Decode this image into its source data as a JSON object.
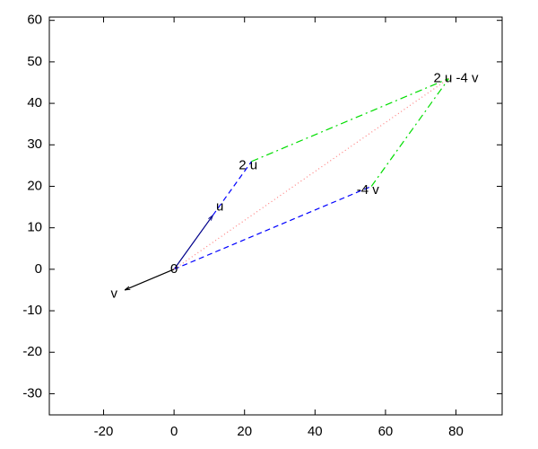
{
  "chart_data": {
    "type": "vector",
    "xlim": [
      -35.4,
      93.1
    ],
    "ylim": [
      -35.1,
      60.8
    ],
    "xticks": [
      -20,
      0,
      20,
      40,
      60,
      80
    ],
    "yticks": [
      -30,
      -20,
      -10,
      0,
      10,
      20,
      30,
      40,
      50,
      60
    ],
    "series": [
      {
        "color": "#00008b",
        "style": "solid",
        "arrow": true,
        "x": [
          0,
          11
        ],
        "y": [
          0,
          13
        ]
      },
      {
        "color": "#000000",
        "style": "solid",
        "arrow": true,
        "x": [
          0,
          -14
        ],
        "y": [
          0,
          -5
        ]
      },
      {
        "color": "#0000ff",
        "style": "dashed",
        "x": [
          11,
          22
        ],
        "y": [
          13,
          26
        ]
      },
      {
        "color": "#0000ff",
        "style": "dashed",
        "x": [
          0,
          56
        ],
        "y": [
          0,
          20
        ]
      },
      {
        "color": "#00dd00",
        "style": "dashdot",
        "x": [
          22,
          78
        ],
        "y": [
          26,
          46
        ]
      },
      {
        "color": "#00dd00",
        "style": "dashdot",
        "x": [
          56,
          78
        ],
        "y": [
          20,
          46
        ]
      },
      {
        "color": "#ff8080",
        "style": "dotted",
        "x": [
          0,
          78
        ],
        "y": [
          0,
          46
        ]
      }
    ],
    "annotations": [
      {
        "text": "0",
        "x": 0,
        "y": 0
      },
      {
        "text": "u",
        "x": 13,
        "y": 15
      },
      {
        "text": "v",
        "x": -17,
        "y": -6
      },
      {
        "text": "2 u",
        "x": 21,
        "y": 25
      },
      {
        "text": "-4 v",
        "x": 55,
        "y": 19
      },
      {
        "text": "2 u -4 v",
        "x": 80,
        "y": 46
      }
    ]
  }
}
